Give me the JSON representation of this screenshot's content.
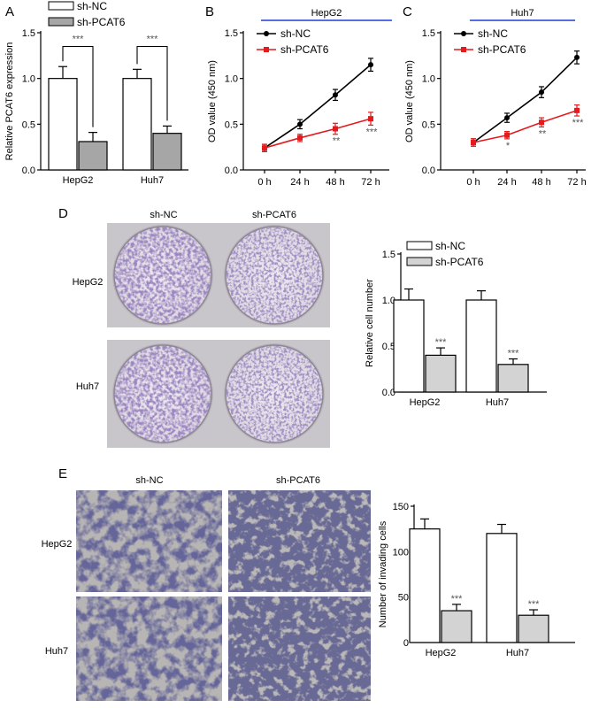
{
  "panels": {
    "A": "A",
    "B": "B",
    "C": "C",
    "D": "D",
    "E": "E"
  },
  "colors": {
    "black": "#000000",
    "red": "#e41a1c",
    "blue": "#1f3fd6",
    "gray": "#a6a6a6",
    "lightgray": "#d3d3d3",
    "crystal": "#5b3f8c",
    "photo_dark": "#1e1e4a"
  },
  "chart_data": [
    {
      "id": "A",
      "type": "bar",
      "ylabel": "Relative PCAT6 expression",
      "ylim": [
        0,
        1.5
      ],
      "yticks": [
        "0.0",
        "0.5",
        "1.0",
        "1.5"
      ],
      "categories": [
        "HepG2",
        "Huh7"
      ],
      "series": [
        {
          "name": "sh-NC",
          "values": [
            1.0,
            1.0
          ],
          "errors": [
            0.13,
            0.1
          ]
        },
        {
          "name": "sh-PCAT6",
          "values": [
            0.31,
            0.4
          ],
          "errors": [
            0.1,
            0.08
          ]
        }
      ],
      "significance": [
        "***",
        "***"
      ],
      "legend": "top-left"
    },
    {
      "id": "B",
      "type": "line",
      "title": "HepG2",
      "ylabel": "OD value (450 nm)",
      "ylim": [
        0,
        1.5
      ],
      "yticks": [
        "0.0",
        "0.5",
        "1.0",
        "1.5"
      ],
      "x": [
        "0 h",
        "24 h",
        "48 h",
        "72 h"
      ],
      "series": [
        {
          "name": "sh-NC",
          "values": [
            0.24,
            0.5,
            0.82,
            1.15
          ],
          "errors": [
            0.04,
            0.05,
            0.06,
            0.07
          ]
        },
        {
          "name": "sh-PCAT6",
          "values": [
            0.24,
            0.35,
            0.45,
            0.56
          ],
          "errors": [
            0.04,
            0.04,
            0.06,
            0.07
          ]
        }
      ],
      "significance": [
        "",
        "",
        "**",
        "***"
      ],
      "legend": "top-left"
    },
    {
      "id": "C",
      "type": "line",
      "title": "Huh7",
      "ylabel": "OD value (450 nm)",
      "ylim": [
        0,
        1.5
      ],
      "yticks": [
        "0.0",
        "0.5",
        "1.0",
        "1.5"
      ],
      "x": [
        "0 h",
        "24 h",
        "48 h",
        "72 h"
      ],
      "series": [
        {
          "name": "sh-NC",
          "values": [
            0.3,
            0.57,
            0.85,
            1.23
          ],
          "errors": [
            0.04,
            0.05,
            0.06,
            0.07
          ]
        },
        {
          "name": "sh-PCAT6",
          "values": [
            0.3,
            0.38,
            0.52,
            0.65
          ],
          "errors": [
            0.04,
            0.04,
            0.05,
            0.06
          ]
        }
      ],
      "significance": [
        "",
        "*",
        "**",
        "***"
      ],
      "legend": "top-left"
    },
    {
      "id": "D",
      "type": "bar",
      "ylabel": "Relative cell number",
      "ylim": [
        0,
        1.5
      ],
      "yticks": [
        "0.0",
        "0.5",
        "1.0",
        "1.5"
      ],
      "categories": [
        "HepG2",
        "Huh7"
      ],
      "series": [
        {
          "name": "sh-NC",
          "values": [
            1.0,
            1.0
          ],
          "errors": [
            0.12,
            0.1
          ]
        },
        {
          "name": "sh-PCAT6",
          "values": [
            0.4,
            0.3
          ],
          "errors": [
            0.08,
            0.06
          ]
        }
      ],
      "significance": [
        "***",
        "***"
      ],
      "legend": "top-left"
    },
    {
      "id": "E",
      "type": "bar",
      "ylabel": "Number of invading cells",
      "ylim": [
        0,
        150
      ],
      "yticks": [
        "0",
        "50",
        "100",
        "150"
      ],
      "categories": [
        "HepG2",
        "Huh7"
      ],
      "series": [
        {
          "name": "sh-NC",
          "values": [
            125,
            120
          ],
          "errors": [
            11,
            10
          ]
        },
        {
          "name": "sh-PCAT6",
          "values": [
            35,
            30
          ],
          "errors": [
            7,
            6
          ]
        }
      ],
      "significance": [
        "***",
        "***"
      ],
      "legend": "none"
    }
  ],
  "photos": {
    "D": {
      "columns": [
        "sh-NC",
        "sh-PCAT6"
      ],
      "rows": [
        "HepG2",
        "Huh7"
      ]
    },
    "E": {
      "columns": [
        "sh-NC",
        "sh-PCAT6"
      ],
      "rows": [
        "HepG2",
        "Huh7"
      ]
    }
  }
}
